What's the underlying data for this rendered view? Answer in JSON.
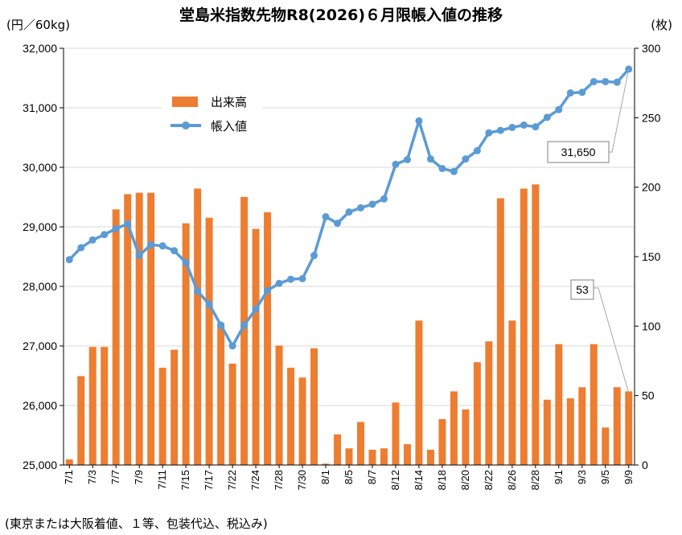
{
  "chart_data": {
    "type": "bar+line",
    "title": "堂島米指数先物R8(2026)６月限帳入値の推移",
    "left_axis_unit": "(円／60kg)",
    "right_axis_unit": "(枚)",
    "footnote": "(東京または大阪着値、１等、包装代込、税込み)",
    "left_ylim": [
      25000,
      32000
    ],
    "left_ticks": [
      "25,000",
      "26,000",
      "27,000",
      "28,000",
      "29,000",
      "30,000",
      "31,000",
      "32,000"
    ],
    "right_ylim": [
      0,
      300
    ],
    "right_ticks": [
      "0",
      "50",
      "100",
      "150",
      "200",
      "250",
      "300"
    ],
    "x_tick_labels": [
      "7/1",
      "7/3",
      "7/7",
      "7/9",
      "7/11",
      "7/15",
      "7/17",
      "7/22",
      "7/24",
      "7/28",
      "7/30",
      "8/1",
      "8/5",
      "8/7",
      "8/12",
      "8/14",
      "8/18",
      "8/20",
      "8/22",
      "8/26",
      "8/28",
      "9/1",
      "9/3",
      "9/5",
      "9/9"
    ],
    "legend": {
      "bar_label": "出来高",
      "line_label": "帳入値"
    },
    "legend_position": "upper-left",
    "colors": {
      "bar": "#ED7D31",
      "line": "#5B9BD5"
    },
    "series": [
      {
        "name": "出来高",
        "axis": "right",
        "values": [
          4,
          64,
          85,
          85,
          184,
          195,
          196,
          196,
          70,
          83,
          174,
          199,
          178,
          102,
          73,
          193,
          170,
          182,
          86,
          70,
          63,
          84,
          1,
          22,
          12,
          31,
          11,
          12,
          45,
          15,
          104,
          11,
          33,
          53,
          40,
          74,
          89,
          192,
          104,
          199,
          202,
          47,
          87,
          48,
          56,
          87,
          27,
          56,
          53
        ]
      },
      {
        "name": "帳入値",
        "axis": "left",
        "values": [
          28450,
          28650,
          28780,
          28870,
          28970,
          29050,
          28520,
          28700,
          28680,
          28600,
          28400,
          27920,
          27700,
          27350,
          27000,
          27350,
          27620,
          27930,
          28050,
          28120,
          28130,
          28520,
          29170,
          29060,
          29250,
          29320,
          29380,
          29470,
          30050,
          30130,
          30780,
          30140,
          29980,
          29930,
          30140,
          30280,
          30580,
          30620,
          30670,
          30710,
          30680,
          30840,
          30970,
          31250,
          31260,
          31440,
          31440,
          31430,
          31650
        ]
      }
    ],
    "annotations": [
      {
        "text": "31,650",
        "series": "帳入値"
      },
      {
        "text": "53",
        "series": "出来高"
      }
    ]
  }
}
